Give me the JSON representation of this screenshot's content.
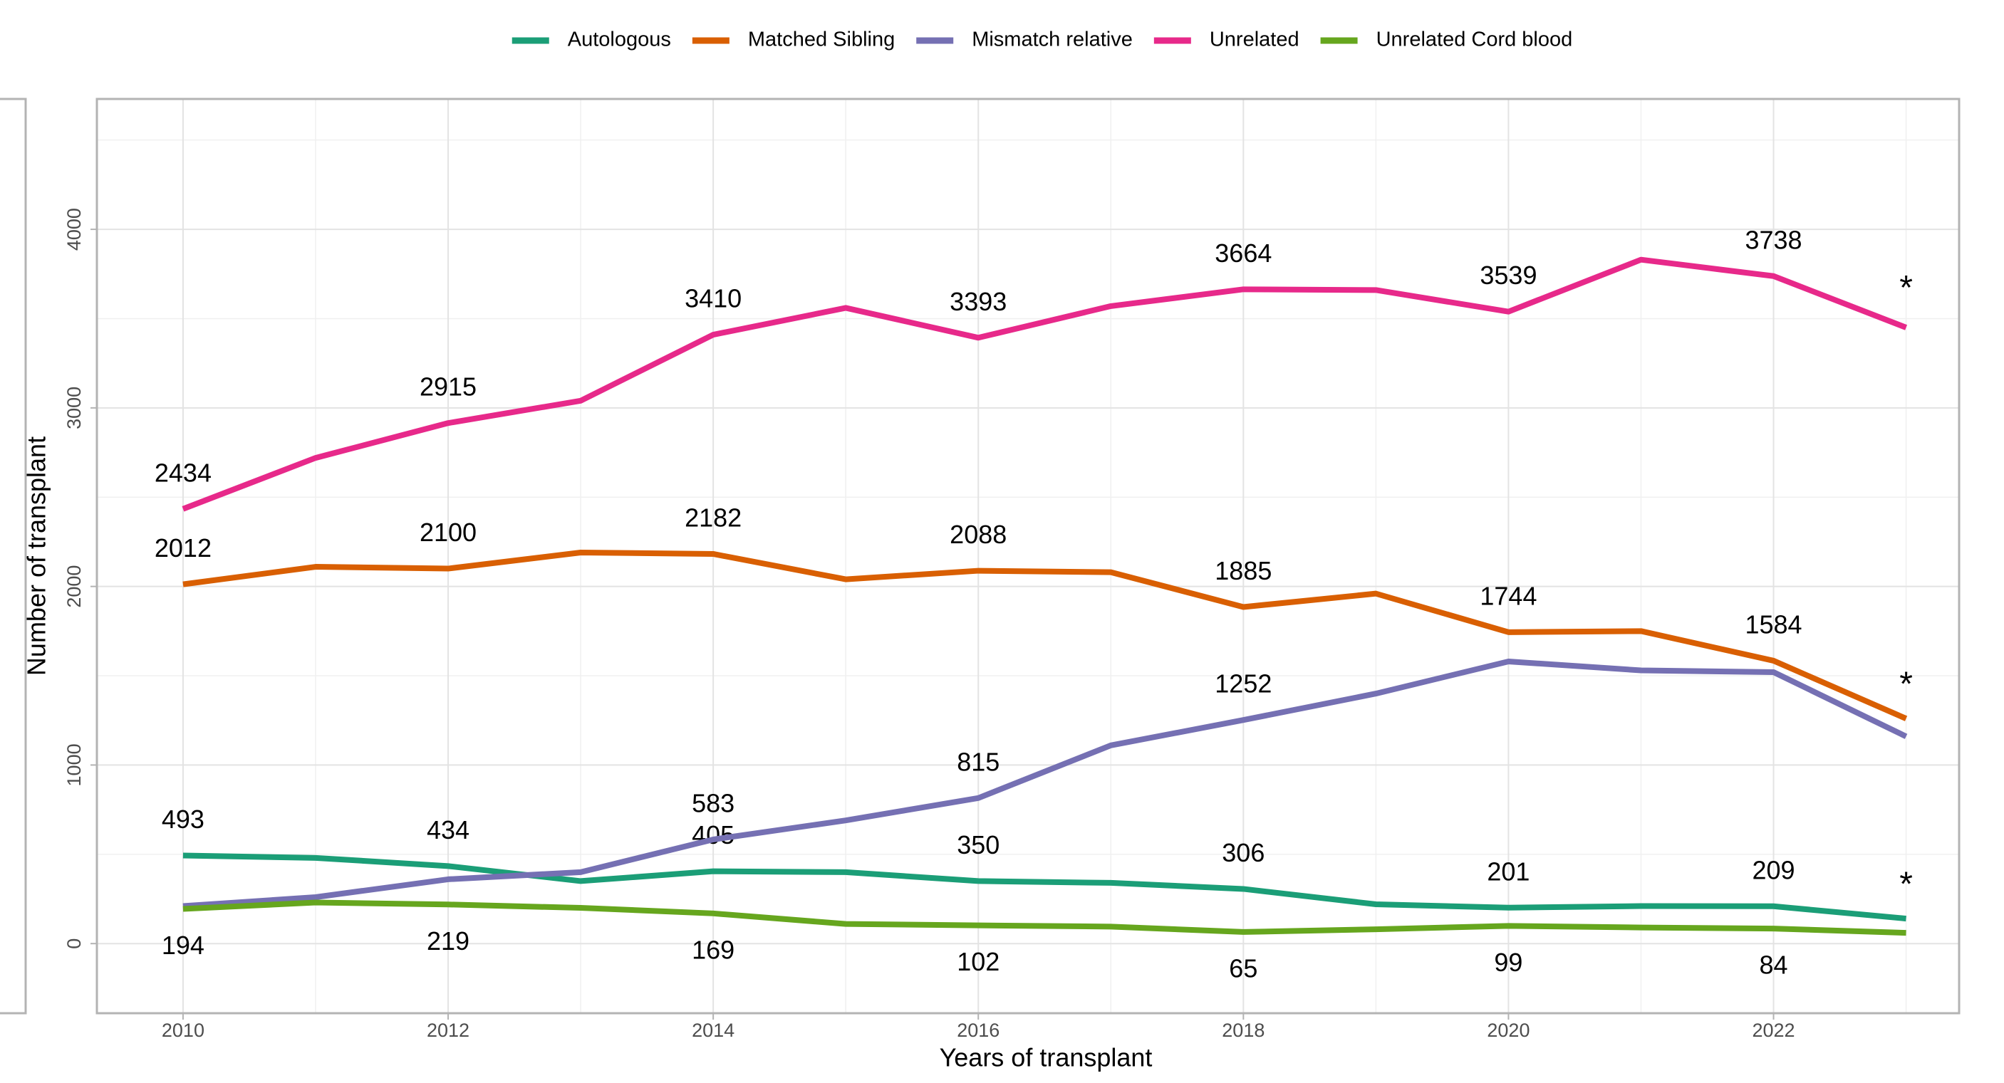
{
  "chart_data": {
    "type": "line",
    "x_label": "Years of transplant",
    "y_label": "Number of transplant",
    "x": [
      2010,
      2011,
      2012,
      2013,
      2014,
      2015,
      2016,
      2017,
      2018,
      2019,
      2020,
      2021,
      2022,
      2023
    ],
    "xlim": [
      2009.35,
      2023.4
    ],
    "xticks": [
      2010,
      2012,
      2014,
      2016,
      2018,
      2020,
      2022
    ],
    "ylim": [
      -390,
      4730
    ],
    "yticks": [
      0,
      1000,
      2000,
      3000,
      4000
    ],
    "grid": true,
    "legend": "top",
    "series": [
      {
        "name": "Autologous",
        "color": "#1b9e77",
        "values": [
          493,
          480,
          434,
          350,
          405,
          400,
          350,
          340,
          306,
          220,
          201,
          210,
          209,
          140
        ],
        "value_labels": [
          "493",
          null,
          "434",
          null,
          "405",
          null,
          "350",
          null,
          "306",
          null,
          "201",
          null,
          "209",
          null
        ],
        "label_position": "above"
      },
      {
        "name": "Matched Sibling",
        "color": "#d95f02",
        "values": [
          2012,
          2110,
          2100,
          2190,
          2182,
          2040,
          2088,
          2080,
          1885,
          1960,
          1744,
          1750,
          1584,
          1260
        ],
        "value_labels": [
          "2012",
          null,
          "2100",
          null,
          "2182",
          null,
          "2088",
          null,
          "1885",
          null,
          "1744",
          null,
          "1584",
          null
        ],
        "label_position": "above"
      },
      {
        "name": "Mismatch relative",
        "color": "#7570b3",
        "values": [
          210,
          260,
          360,
          400,
          583,
          690,
          815,
          1110,
          1252,
          1400,
          1580,
          1530,
          1520,
          1160
        ],
        "value_labels": [
          null,
          null,
          null,
          null,
          "583",
          null,
          "815",
          null,
          "1252",
          null,
          null,
          null,
          null,
          null
        ],
        "label_position": "above"
      },
      {
        "name": "Unrelated",
        "color": "#e7298a",
        "values": [
          2434,
          2720,
          2915,
          3040,
          3410,
          3560,
          3393,
          3570,
          3664,
          3660,
          3539,
          3830,
          3738,
          3450
        ],
        "value_labels": [
          "2434",
          null,
          "2915",
          null,
          "3410",
          null,
          "3393",
          null,
          "3664",
          null,
          "3539",
          null,
          "3738",
          null
        ],
        "label_position": "above"
      },
      {
        "name": "Unrelated Cord blood",
        "color": "#66a61e",
        "values": [
          194,
          230,
          219,
          200,
          169,
          110,
          102,
          95,
          65,
          80,
          99,
          90,
          84,
          60
        ],
        "value_labels": [
          "194",
          null,
          "219",
          null,
          "169",
          null,
          "102",
          null,
          "65",
          null,
          "99",
          null,
          "84",
          null
        ],
        "label_position": "below"
      }
    ],
    "annotations": [
      {
        "text": "*",
        "x": 2023,
        "y": 3660,
        "color": "#ff0000"
      },
      {
        "text": "*",
        "x": 2023,
        "y": 1440,
        "color": "#ff0000"
      },
      {
        "text": "*",
        "x": 2023,
        "y": 320,
        "color": "#ff0000"
      }
    ]
  }
}
